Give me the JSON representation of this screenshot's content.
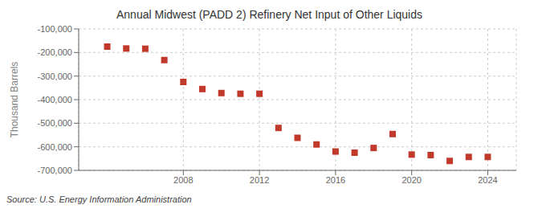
{
  "chart_data": {
    "type": "scatter",
    "title": "Annual Midwest (PADD 2) Refinery Net Input of Other Liquids",
    "y_label": "Thousand Barrels",
    "annotation": "Source: U.S. Energy Information Administration",
    "x": [
      2004,
      2005,
      2006,
      2007,
      2008,
      2009,
      2010,
      2011,
      2012,
      2013,
      2014,
      2015,
      2016,
      2017,
      2018,
      2019,
      2020,
      2021,
      2022,
      2023,
      2024
    ],
    "values": [
      -175000,
      -183000,
      -184000,
      -232000,
      -325000,
      -355000,
      -372000,
      -375000,
      -375000,
      -520000,
      -562000,
      -590000,
      -620000,
      -625000,
      -605000,
      -546000,
      -633000,
      -635000,
      -660000,
      -643000,
      -643000
    ],
    "color": "#c0392b",
    "marker": "square",
    "xlim": [
      2002.5,
      2025.5
    ],
    "xticks": [
      2008,
      2012,
      2016,
      2020,
      2024
    ],
    "ylim": [
      -700000,
      -100000
    ],
    "yticks": [
      {
        "value": -700000,
        "label": "-700,000"
      },
      {
        "value": -600000,
        "label": "-600,000"
      },
      {
        "value": -500000,
        "label": "-500,000"
      },
      {
        "value": -400000,
        "label": "-400,000"
      },
      {
        "value": -300000,
        "label": "-300,000"
      },
      {
        "value": -200000,
        "label": "-200,000"
      },
      {
        "value": -100000,
        "label": "-100,000"
      }
    ],
    "grid": true
  }
}
